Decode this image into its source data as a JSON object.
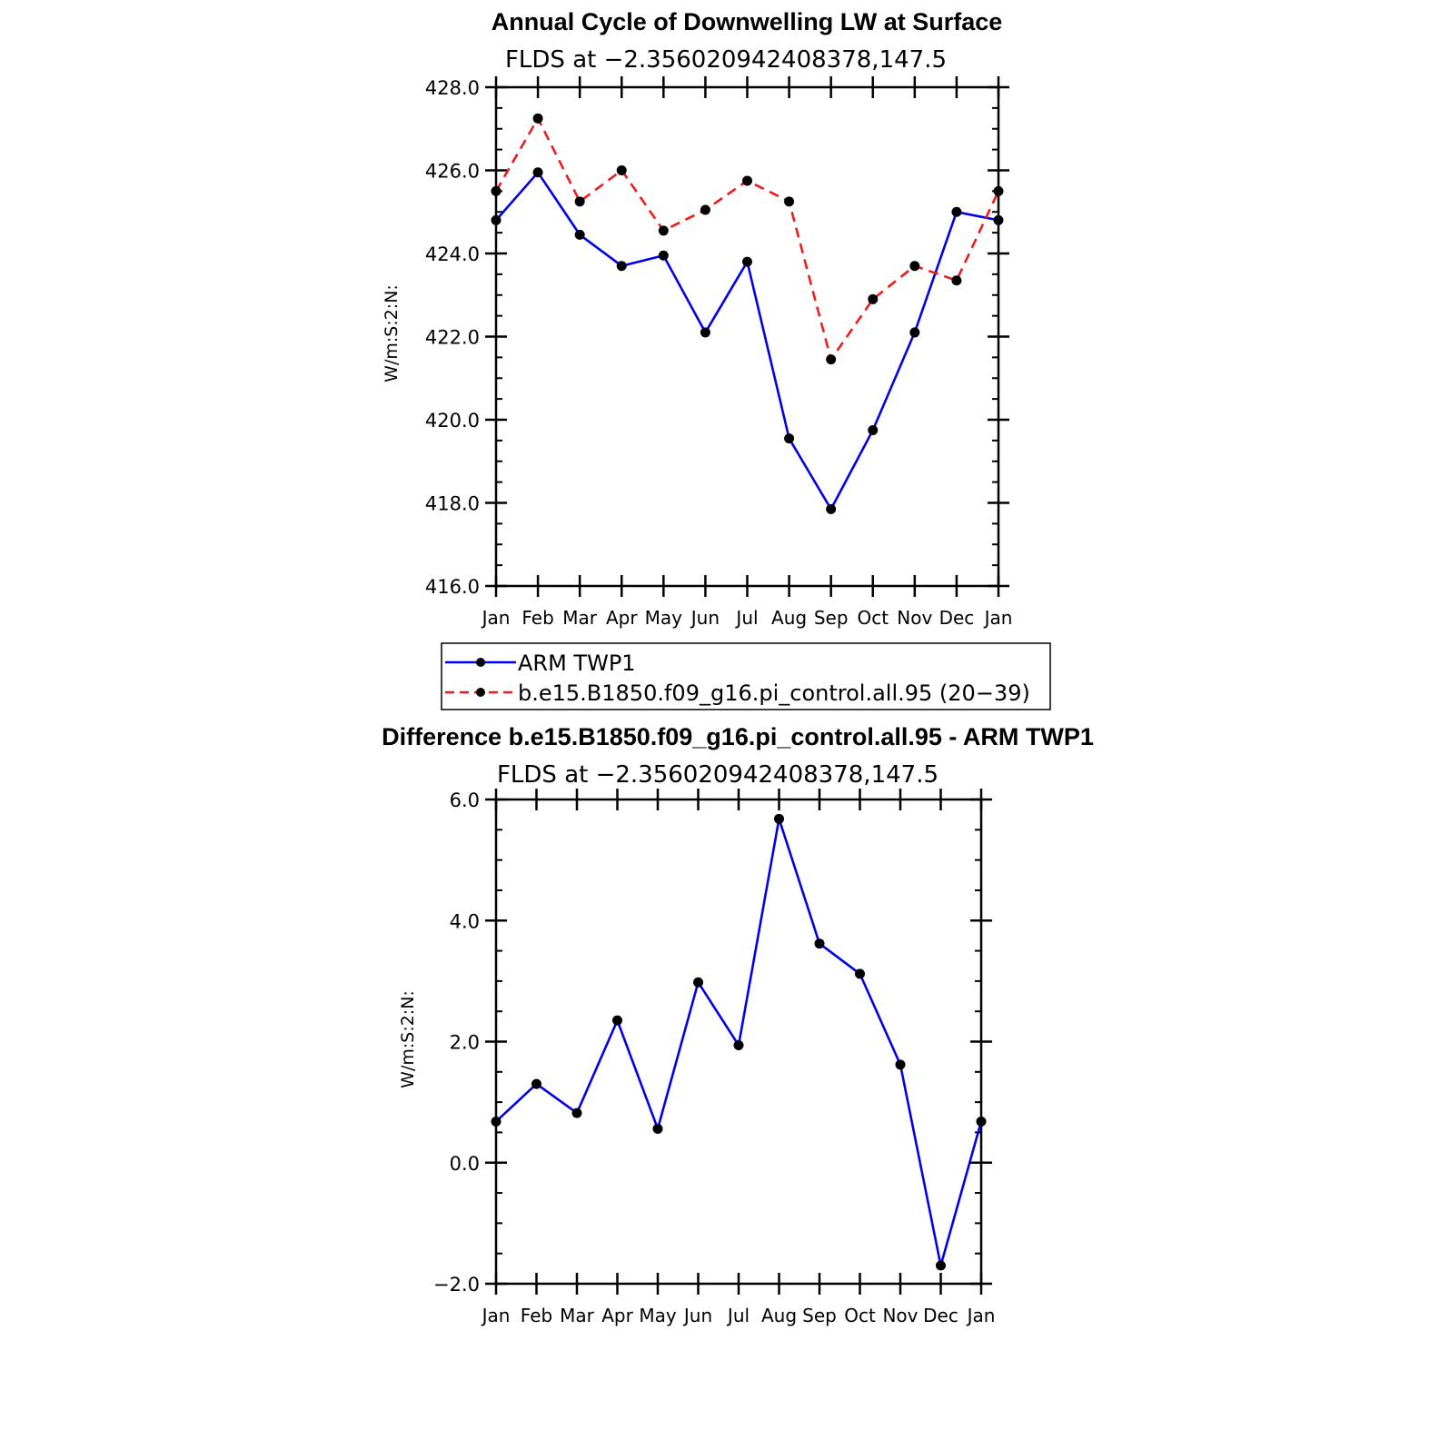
{
  "chart_data": [
    {
      "type": "line",
      "title": "Annual Cycle of Downwelling LW at Surface",
      "subtitle": "FLDS at −2.356020942408378,147.5",
      "xlabel": "",
      "ylabel": "W/m:S:2:N:",
      "categories": [
        "Jan",
        "Feb",
        "Mar",
        "Apr",
        "May",
        "Jun",
        "Jul",
        "Aug",
        "Sep",
        "Oct",
        "Nov",
        "Dec",
        "Jan"
      ],
      "ylim": [
        416.0,
        428.0
      ],
      "ytick_labels": [
        "416.0",
        "418.0",
        "420.0",
        "422.0",
        "424.0",
        "426.0",
        "428.0"
      ],
      "series": [
        {
          "name": "ARM  TWP1",
          "color": "#0000ee",
          "dash": "solid",
          "values": [
            424.8,
            425.95,
            424.45,
            423.7,
            423.95,
            422.1,
            423.8,
            419.55,
            417.85,
            419.75,
            422.1,
            425.0,
            424.8
          ]
        },
        {
          "name": "b.e15.B1850.f09_g16.pi_control.all.95 (20−39)",
          "color": "#ee1c1c",
          "dash": "dashed",
          "values": [
            425.5,
            427.25,
            425.25,
            426.0,
            424.55,
            425.05,
            425.75,
            425.25,
            421.45,
            422.9,
            423.7,
            423.35,
            425.5
          ]
        }
      ],
      "legend_position": "below"
    },
    {
      "type": "line",
      "title": "Difference b.e15.B1850.f09_g16.pi_control.all.95 - ARM TWP1",
      "subtitle": "FLDS at −2.356020942408378,147.5",
      "xlabel": "",
      "ylabel": "W/m:S:2:N:",
      "categories": [
        "Jan",
        "Feb",
        "Mar",
        "Apr",
        "May",
        "Jun",
        "Jul",
        "Aug",
        "Sep",
        "Oct",
        "Nov",
        "Dec",
        "Jan"
      ],
      "ylim": [
        -2.0,
        6.0
      ],
      "ytick_labels": [
        "−2.0",
        "0.0",
        "2.0",
        "4.0",
        "6.0"
      ],
      "series": [
        {
          "color": "#0000ee",
          "dash": "solid",
          "values": [
            0.68,
            1.3,
            0.82,
            2.35,
            0.56,
            2.98,
            1.94,
            5.68,
            3.62,
            3.12,
            1.62,
            -1.7,
            0.68
          ]
        }
      ]
    }
  ]
}
